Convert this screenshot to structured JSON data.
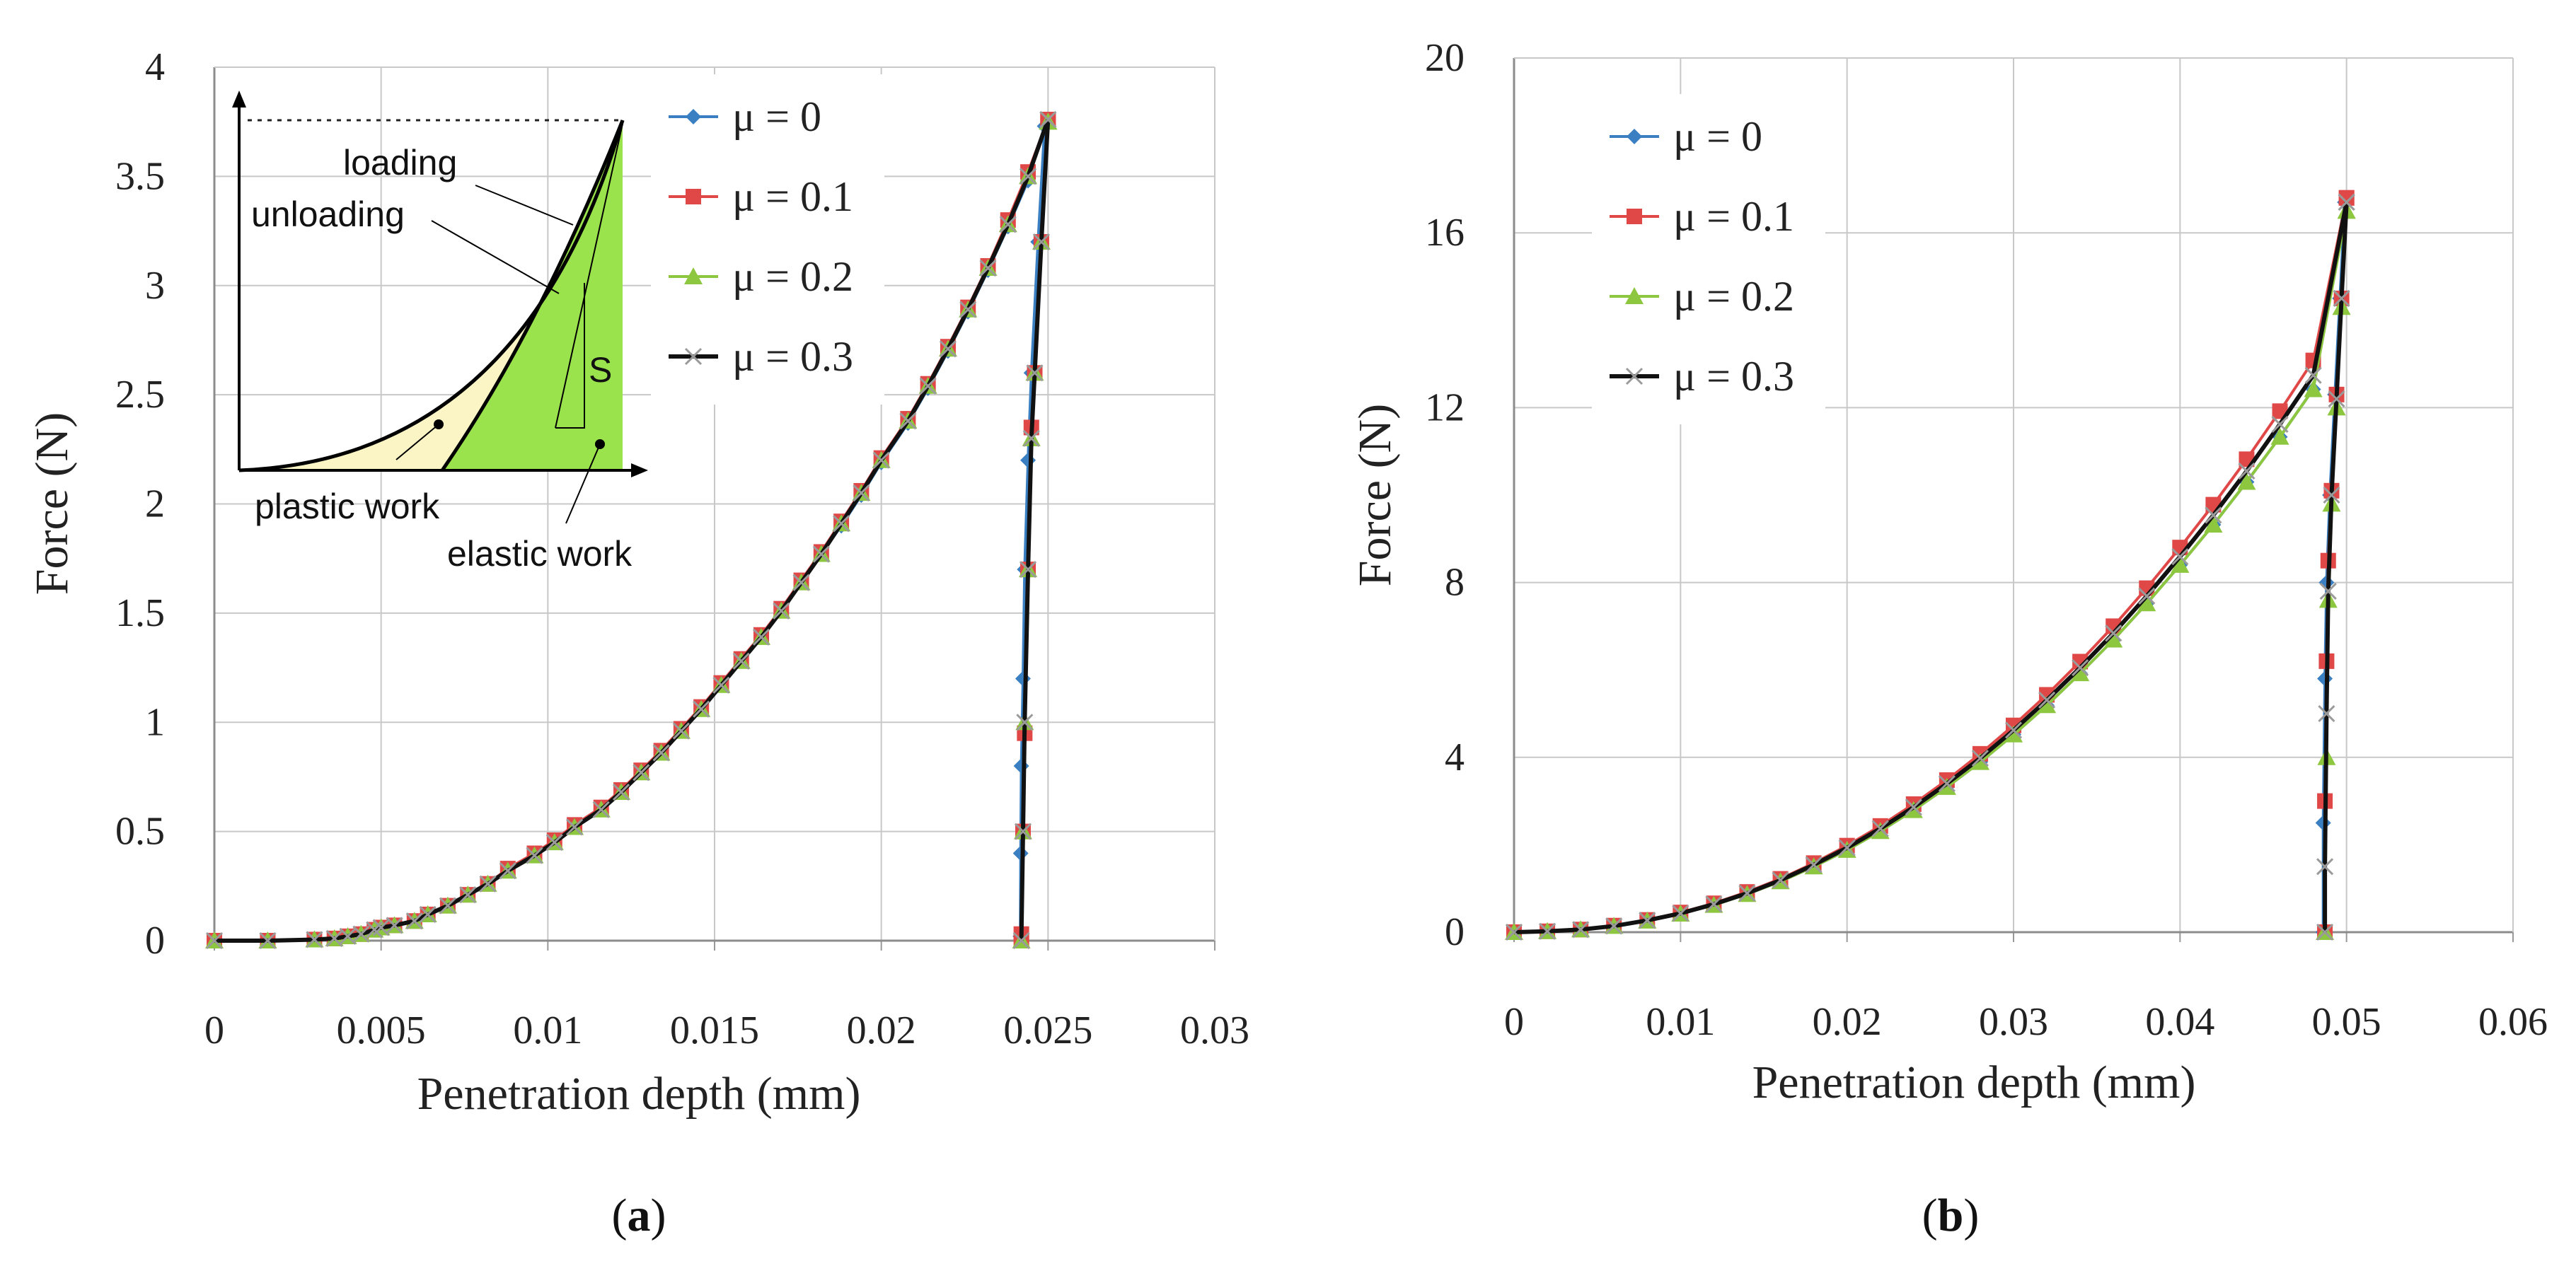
{
  "chart_data": [
    {
      "type": "line",
      "panel_label": "a",
      "xlabel": "Penetration depth (mm)",
      "ylabel": "Force (N)",
      "xlim": [
        0,
        0.03
      ],
      "ylim": [
        0,
        4
      ],
      "xticks": [
        "0",
        "0.005",
        "0.01",
        "0.015",
        "0.02",
        "0.025",
        "0.03"
      ],
      "yticks": [
        "0",
        "0.5",
        "1",
        "1.5",
        "2",
        "2.5",
        "3",
        "3.5",
        "4"
      ],
      "grid": true,
      "legend_position": "top-right",
      "series": [
        {
          "name": "μ = 0",
          "color": "#3a7fc1",
          "marker": "diamond",
          "loading": {
            "x": [
              0,
              0.0016,
              0.003,
              0.0036,
              0.004,
              0.0044,
              0.0048,
              0.005,
              0.0054,
              0.006,
              0.0064,
              0.007,
              0.0076,
              0.0082,
              0.0088,
              0.0096,
              0.0102,
              0.0108,
              0.0116,
              0.0122,
              0.0128,
              0.0134,
              0.014,
              0.0146,
              0.0152,
              0.0158,
              0.0164,
              0.017,
              0.0176,
              0.0182,
              0.0188,
              0.0194,
              0.02,
              0.0208,
              0.0214,
              0.022,
              0.0226,
              0.0232,
              0.0238,
              0.0244,
              0.0249
            ],
            "y": [
              0,
              0,
              0.005,
              0.01,
              0.02,
              0.03,
              0.05,
              0.06,
              0.07,
              0.09,
              0.12,
              0.16,
              0.21,
              0.26,
              0.32,
              0.39,
              0.45,
              0.52,
              0.6,
              0.68,
              0.77,
              0.86,
              0.96,
              1.06,
              1.17,
              1.28,
              1.39,
              1.51,
              1.64,
              1.77,
              1.9,
              2.04,
              2.19,
              2.37,
              2.53,
              2.7,
              2.88,
              3.07,
              3.27,
              3.48,
              3.73
            ]
          },
          "unloading": {
            "x": [
              0.0249,
              0.0247,
              0.0245,
              0.0244,
              0.0243,
              0.02425,
              0.0242,
              0.02418,
              0.02417
            ],
            "y": [
              3.73,
              3.2,
              2.6,
              2.2,
              1.7,
              1.2,
              0.8,
              0.4,
              0.02
            ]
          }
        },
        {
          "name": "μ = 0.1",
          "color": "#e04848",
          "marker": "square",
          "loading": {
            "x": [
              0,
              0.0016,
              0.003,
              0.0036,
              0.004,
              0.0044,
              0.0048,
              0.005,
              0.0054,
              0.006,
              0.0064,
              0.007,
              0.0076,
              0.0082,
              0.0088,
              0.0096,
              0.0102,
              0.0108,
              0.0116,
              0.0122,
              0.0128,
              0.0134,
              0.014,
              0.0146,
              0.0152,
              0.0158,
              0.0164,
              0.017,
              0.0176,
              0.0182,
              0.0188,
              0.0194,
              0.02,
              0.0208,
              0.0214,
              0.022,
              0.0226,
              0.0232,
              0.0238,
              0.0244,
              0.025
            ],
            "y": [
              0,
              0,
              0.005,
              0.01,
              0.02,
              0.03,
              0.05,
              0.06,
              0.07,
              0.09,
              0.12,
              0.16,
              0.21,
              0.26,
              0.33,
              0.4,
              0.46,
              0.53,
              0.61,
              0.69,
              0.78,
              0.87,
              0.97,
              1.07,
              1.18,
              1.29,
              1.4,
              1.52,
              1.65,
              1.78,
              1.92,
              2.06,
              2.21,
              2.39,
              2.55,
              2.72,
              2.9,
              3.09,
              3.3,
              3.52,
              3.76
            ]
          },
          "unloading": {
            "x": [
              0.025,
              0.0248,
              0.0246,
              0.0245,
              0.0244,
              0.0243,
              0.02425,
              0.0242,
              0.0242
            ],
            "y": [
              3.76,
              3.2,
              2.6,
              2.35,
              1.7,
              0.95,
              0.5,
              0.03,
              0.0
            ]
          }
        },
        {
          "name": "μ = 0.2",
          "color": "#8dc63f",
          "marker": "triangle",
          "loading": {
            "x": [
              0,
              0.0016,
              0.003,
              0.0036,
              0.004,
              0.0044,
              0.0048,
              0.005,
              0.0054,
              0.006,
              0.0064,
              0.007,
              0.0076,
              0.0082,
              0.0088,
              0.0096,
              0.0102,
              0.0108,
              0.0116,
              0.0122,
              0.0128,
              0.0134,
              0.014,
              0.0146,
              0.0152,
              0.0158,
              0.0164,
              0.017,
              0.0176,
              0.0182,
              0.0188,
              0.0194,
              0.02,
              0.0208,
              0.0214,
              0.022,
              0.0226,
              0.0232,
              0.0238,
              0.0244,
              0.025
            ],
            "y": [
              0,
              0,
              0.005,
              0.01,
              0.02,
              0.03,
              0.05,
              0.06,
              0.07,
              0.09,
              0.12,
              0.16,
              0.21,
              0.26,
              0.32,
              0.39,
              0.45,
              0.52,
              0.6,
              0.68,
              0.77,
              0.86,
              0.96,
              1.06,
              1.17,
              1.28,
              1.39,
              1.51,
              1.64,
              1.77,
              1.91,
              2.05,
              2.2,
              2.38,
              2.54,
              2.71,
              2.89,
              3.08,
              3.28,
              3.5,
              3.75
            ]
          },
          "unloading": {
            "x": [
              0.025,
              0.0248,
              0.0246,
              0.0245,
              0.0244,
              0.0243,
              0.02425,
              0.0242
            ],
            "y": [
              3.75,
              3.2,
              2.6,
              2.3,
              1.7,
              1.0,
              0.5,
              0.0
            ]
          }
        },
        {
          "name": "μ = 0.3",
          "color": "#2a1a4a",
          "marker": "x",
          "loading": {
            "x": [
              0,
              0.0016,
              0.003,
              0.0036,
              0.004,
              0.0044,
              0.0048,
              0.005,
              0.0054,
              0.006,
              0.0064,
              0.007,
              0.0076,
              0.0082,
              0.0088,
              0.0096,
              0.0102,
              0.0108,
              0.0116,
              0.0122,
              0.0128,
              0.0134,
              0.014,
              0.0146,
              0.0152,
              0.0158,
              0.0164,
              0.017,
              0.0176,
              0.0182,
              0.0188,
              0.0194,
              0.02,
              0.0208,
              0.0214,
              0.022,
              0.0226,
              0.0232,
              0.0238,
              0.0244,
              0.025
            ],
            "y": [
              0,
              0,
              0.005,
              0.01,
              0.02,
              0.03,
              0.05,
              0.06,
              0.07,
              0.09,
              0.12,
              0.16,
              0.21,
              0.26,
              0.32,
              0.39,
              0.45,
              0.52,
              0.6,
              0.68,
              0.77,
              0.86,
              0.96,
              1.06,
              1.17,
              1.28,
              1.39,
              1.51,
              1.64,
              1.77,
              1.91,
              2.05,
              2.2,
              2.38,
              2.54,
              2.71,
              2.89,
              3.08,
              3.28,
              3.5,
              3.76
            ]
          },
          "unloading": {
            "x": [
              0.025,
              0.0248,
              0.0246,
              0.0245,
              0.0244,
              0.0243,
              0.02425,
              0.0242
            ],
            "y": [
              3.76,
              3.2,
              2.6,
              2.3,
              1.7,
              1.0,
              0.5,
              0.0
            ]
          }
        }
      ],
      "inset": {
        "labels": [
          "loading",
          "unloading",
          "S",
          "plastic work",
          "elastic work"
        ],
        "plastic_color": "#fbf5c6",
        "elastic_color": "#9be34c"
      }
    },
    {
      "type": "line",
      "panel_label": "b",
      "xlabel": "Penetration depth (mm)",
      "ylabel": "Force (N)",
      "xlim": [
        0,
        0.06
      ],
      "ylim": [
        0,
        20
      ],
      "xticks": [
        "0",
        "0.01",
        "0.02",
        "0.03",
        "0.04",
        "0.05",
        "0.06"
      ],
      "yticks": [
        "0",
        "4",
        "8",
        "12",
        "16",
        "20"
      ],
      "grid": true,
      "legend_position": "top-left",
      "series": [
        {
          "name": "μ = 0",
          "color": "#3a7fc1",
          "marker": "diamond",
          "loading": {
            "x": [
              0,
              0.002,
              0.004,
              0.006,
              0.008,
              0.01,
              0.012,
              0.014,
              0.016,
              0.018,
              0.02,
              0.022,
              0.024,
              0.026,
              0.028,
              0.03,
              0.032,
              0.034,
              0.036,
              0.038,
              0.04,
              0.042,
              0.044,
              0.046,
              0.048,
              0.0499
            ],
            "y": [
              0,
              0.02,
              0.06,
              0.14,
              0.26,
              0.42,
              0.62,
              0.87,
              1.16,
              1.5,
              1.88,
              2.31,
              2.79,
              3.32,
              3.89,
              4.52,
              5.19,
              5.92,
              6.69,
              7.52,
              8.4,
              9.32,
              10.3,
              11.33,
              12.42,
              16.7
            ]
          },
          "unloading": {
            "x": [
              0.0499,
              0.0496,
              0.0493,
              0.049,
              0.0488,
              0.0487,
              0.0486,
              0.0486
            ],
            "y": [
              16.7,
              14.5,
              12.3,
              10.0,
              8.0,
              5.8,
              2.5,
              0.0
            ]
          }
        },
        {
          "name": "μ = 0.1",
          "color": "#e04848",
          "marker": "square",
          "loading": {
            "x": [
              0,
              0.002,
              0.004,
              0.006,
              0.008,
              0.01,
              0.012,
              0.014,
              0.016,
              0.018,
              0.02,
              0.022,
              0.024,
              0.026,
              0.028,
              0.03,
              0.032,
              0.034,
              0.036,
              0.038,
              0.04,
              0.042,
              0.044,
              0.046,
              0.048,
              0.05
            ],
            "y": [
              0,
              0.02,
              0.06,
              0.15,
              0.28,
              0.45,
              0.66,
              0.92,
              1.22,
              1.58,
              1.98,
              2.43,
              2.93,
              3.48,
              4.08,
              4.73,
              5.43,
              6.19,
              7.0,
              7.87,
              8.8,
              9.78,
              10.82,
              11.92,
              13.08,
              16.8
            ]
          },
          "unloading": {
            "x": [
              0.05,
              0.0497,
              0.0494,
              0.0491,
              0.0489,
              0.0488,
              0.0487,
              0.0487
            ],
            "y": [
              16.8,
              14.5,
              12.3,
              10.1,
              8.5,
              6.2,
              3.0,
              0.0
            ]
          }
        },
        {
          "name": "μ = 0.2",
          "color": "#8dc63f",
          "marker": "triangle",
          "loading": {
            "x": [
              0,
              0.002,
              0.004,
              0.006,
              0.008,
              0.01,
              0.012,
              0.014,
              0.016,
              0.018,
              0.02,
              0.022,
              0.024,
              0.026,
              0.028,
              0.03,
              0.032,
              0.034,
              0.036,
              0.038,
              0.04,
              0.042,
              0.044,
              0.046,
              0.048,
              0.05
            ],
            "y": [
              0,
              0.02,
              0.06,
              0.14,
              0.26,
              0.42,
              0.62,
              0.87,
              1.16,
              1.5,
              1.88,
              2.31,
              2.79,
              3.32,
              3.89,
              4.52,
              5.19,
              5.92,
              6.69,
              7.52,
              8.4,
              9.32,
              10.3,
              11.33,
              12.42,
              16.5
            ]
          },
          "unloading": {
            "x": [
              0.05,
              0.0497,
              0.0494,
              0.0491,
              0.0489,
              0.0488,
              0.0487
            ],
            "y": [
              16.5,
              14.3,
              12.0,
              9.8,
              7.6,
              4.0,
              0.0
            ]
          }
        },
        {
          "name": "μ = 0.3",
          "color": "#2a1a4a",
          "marker": "x",
          "loading": {
            "x": [
              0,
              0.002,
              0.004,
              0.006,
              0.008,
              0.01,
              0.012,
              0.014,
              0.016,
              0.018,
              0.02,
              0.022,
              0.024,
              0.026,
              0.028,
              0.03,
              0.032,
              0.034,
              0.036,
              0.038,
              0.04,
              0.042,
              0.044,
              0.046,
              0.048,
              0.05
            ],
            "y": [
              0,
              0.02,
              0.06,
              0.14,
              0.27,
              0.43,
              0.64,
              0.89,
              1.19,
              1.54,
              1.93,
              2.37,
              2.86,
              3.4,
              3.98,
              4.62,
              5.31,
              6.05,
              6.84,
              7.69,
              8.59,
              9.54,
              10.55,
              11.62,
              12.74,
              16.7
            ]
          },
          "unloading": {
            "x": [
              0.05,
              0.0497,
              0.0494,
              0.0491,
              0.0489,
              0.0488,
              0.0487,
              0.0487
            ],
            "y": [
              16.7,
              14.5,
              12.2,
              10.0,
              7.8,
              5.0,
              1.5,
              0.0
            ]
          }
        }
      ]
    }
  ]
}
